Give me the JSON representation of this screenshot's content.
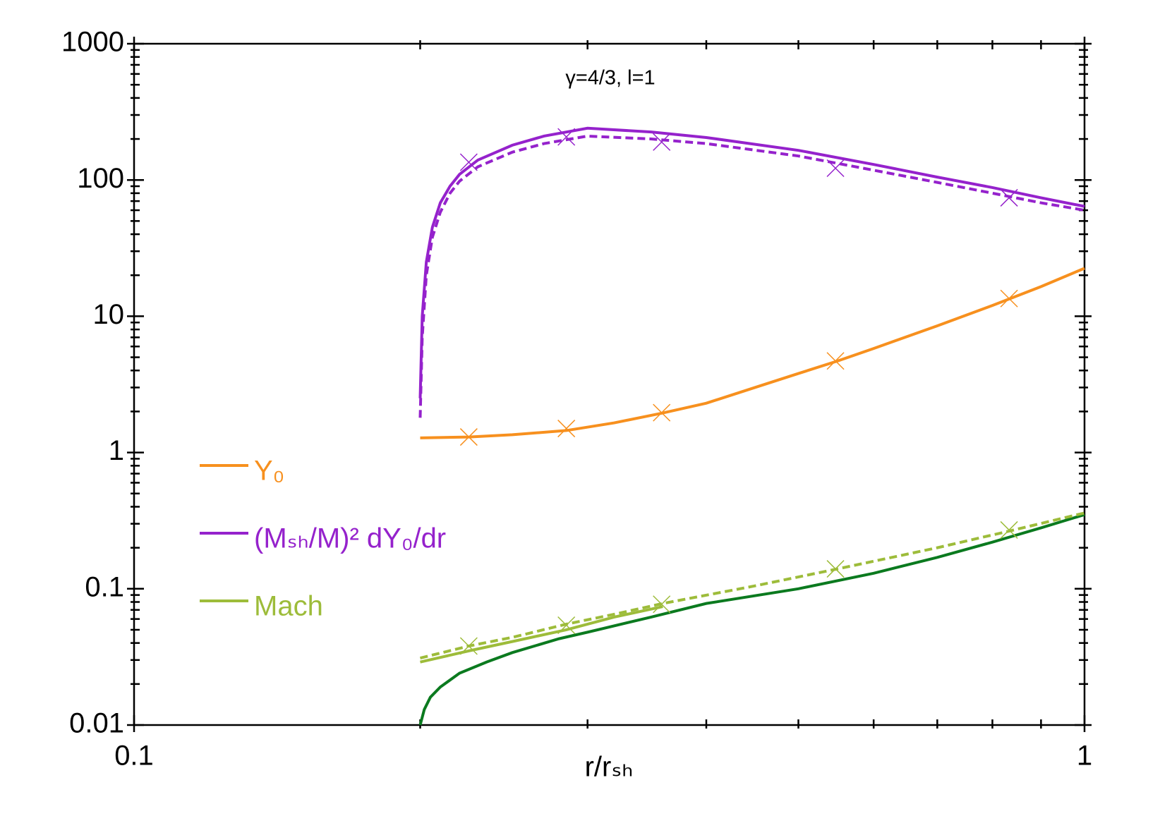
{
  "chart_data": {
    "type": "line",
    "title": "γ=4/3, l=1",
    "x_label": "r/rₛₕ",
    "xscale": "log",
    "yscale": "log",
    "xlim": [
      0.1,
      1
    ],
    "ylim": [
      0.01,
      1000
    ],
    "xticks": [
      0.1,
      1
    ],
    "xminor": [
      0.2,
      0.3,
      0.4,
      0.5,
      0.6,
      0.7,
      0.8,
      0.9
    ],
    "yticks": [
      0.01,
      0.1,
      1,
      10,
      100,
      1000
    ],
    "yminor": [
      0.02,
      0.03,
      0.04,
      0.05,
      0.06,
      0.07,
      0.08,
      0.09,
      0.2,
      0.3,
      0.4,
      0.5,
      0.6,
      0.7,
      0.8,
      0.9,
      2,
      3,
      4,
      5,
      6,
      7,
      8,
      9,
      20,
      30,
      40,
      50,
      60,
      70,
      80,
      90,
      200,
      300,
      400,
      500,
      600,
      700,
      800,
      900
    ],
    "legend": "left",
    "series": [
      {
        "name": "Y₀",
        "color": "#f7901e",
        "style": "solid",
        "x": [
          0.2,
          0.225,
          0.25,
          0.285,
          0.32,
          0.36,
          0.4,
          0.45,
          0.5,
          0.55,
          0.6,
          0.7,
          0.8,
          0.9,
          1
        ],
        "values": [
          1.28,
          1.3,
          1.35,
          1.45,
          1.65,
          1.95,
          2.3,
          3.0,
          3.8,
          4.7,
          5.8,
          8.5,
          12,
          16.5,
          22.5
        ]
      },
      {
        "name": "(Mₛₕ/M)² dY₀/dr",
        "color": "#9522cc",
        "style": "solid",
        "x": [
          0.2,
          0.201,
          0.203,
          0.206,
          0.21,
          0.215,
          0.22,
          0.23,
          0.25,
          0.27,
          0.3,
          0.35,
          0.4,
          0.5,
          0.6,
          0.7,
          0.8,
          0.9,
          1
        ],
        "values": [
          2.5,
          10,
          25,
          45,
          68,
          90,
          110,
          140,
          180,
          210,
          240,
          225,
          205,
          165,
          130,
          105,
          88,
          74,
          64
        ]
      },
      {
        "name": "Mach",
        "color": "#9dbc3a",
        "style": "solid",
        "x": [
          0.2,
          0.225,
          0.25,
          0.285,
          0.32,
          0.36
        ],
        "values": [
          0.029,
          0.035,
          0.041,
          0.05,
          0.062,
          0.074
        ]
      },
      {
        "color": "#9522cc",
        "style": "dashed",
        "x": [
          0.2,
          0.201,
          0.203,
          0.206,
          0.21,
          0.215,
          0.22,
          0.23,
          0.25,
          0.27,
          0.3,
          0.35,
          0.4,
          0.5,
          0.6,
          0.7,
          0.8,
          0.9,
          1
        ],
        "values": [
          1.8,
          7,
          20,
          38,
          58,
          80,
          98,
          125,
          160,
          185,
          210,
          200,
          185,
          150,
          118,
          96,
          80,
          68,
          60
        ]
      },
      {
        "color": "#0b7a1f",
        "style": "solid",
        "x": [
          0.2,
          0.202,
          0.205,
          0.21,
          0.22,
          0.235,
          0.25,
          0.28,
          0.3,
          0.35,
          0.4,
          0.5,
          0.6,
          0.7,
          0.8,
          0.9,
          1
        ],
        "values": [
          0.01,
          0.013,
          0.016,
          0.019,
          0.024,
          0.029,
          0.034,
          0.043,
          0.048,
          0.062,
          0.078,
          0.1,
          0.13,
          0.17,
          0.22,
          0.28,
          0.35
        ]
      },
      {
        "color": "#9dbc3a",
        "style": "dashed",
        "x": [
          0.2,
          0.225,
          0.25,
          0.285,
          0.32,
          0.36,
          0.45,
          0.55,
          0.7,
          0.833,
          1
        ],
        "values": [
          0.031,
          0.038,
          0.044,
          0.055,
          0.065,
          0.078,
          0.105,
          0.14,
          0.2,
          0.265,
          0.36
        ]
      },
      {
        "color": "#9522cc",
        "style": "markers",
        "x": [
          0.225,
          0.285,
          0.359,
          0.547,
          0.833
        ],
        "values": [
          135,
          207,
          190,
          122,
          74
        ]
      },
      {
        "color": "#f7901e",
        "style": "markers",
        "x": [
          0.225,
          0.285,
          0.359,
          0.547,
          0.833
        ],
        "values": [
          1.3,
          1.5,
          1.96,
          4.7,
          13.5
        ]
      },
      {
        "color": "#9dbc3a",
        "style": "markers",
        "x": [
          0.225,
          0.285,
          0.359,
          0.547,
          0.833
        ],
        "values": [
          0.038,
          0.054,
          0.077,
          0.14,
          0.27
        ]
      }
    ]
  }
}
